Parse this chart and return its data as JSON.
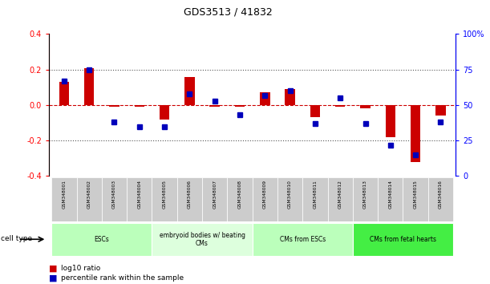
{
  "title": "GDS3513 / 41832",
  "samples": [
    "GSM348001",
    "GSM348002",
    "GSM348003",
    "GSM348004",
    "GSM348005",
    "GSM348006",
    "GSM348007",
    "GSM348008",
    "GSM348009",
    "GSM348010",
    "GSM348011",
    "GSM348012",
    "GSM348013",
    "GSM348014",
    "GSM348015",
    "GSM348016"
  ],
  "log10_ratio": [
    0.13,
    0.21,
    -0.01,
    -0.01,
    -0.08,
    0.16,
    -0.01,
    -0.01,
    0.07,
    0.09,
    -0.07,
    -0.01,
    -0.02,
    -0.18,
    -0.32,
    -0.06
  ],
  "percentile_rank": [
    67,
    75,
    38,
    35,
    35,
    58,
    53,
    43,
    57,
    60,
    37,
    55,
    37,
    22,
    15,
    38
  ],
  "cell_type_groups": [
    {
      "label": "ESCs",
      "start": 0,
      "end": 3,
      "color": "#bbffbb"
    },
    {
      "label": "embryoid bodies w/ beating\nCMs",
      "start": 4,
      "end": 7,
      "color": "#ddffdd"
    },
    {
      "label": "CMs from ESCs",
      "start": 8,
      "end": 11,
      "color": "#bbffbb"
    },
    {
      "label": "CMs from fetal hearts",
      "start": 12,
      "end": 15,
      "color": "#44ee44"
    }
  ],
  "bar_color": "#cc0000",
  "marker_color": "#0000bb",
  "ylim_left": [
    -0.4,
    0.4
  ],
  "ylim_right": [
    0,
    100
  ],
  "yticks_left": [
    -0.4,
    -0.2,
    0.0,
    0.2,
    0.4
  ],
  "yticks_right": [
    0,
    25,
    50,
    75,
    100
  ],
  "hline_color": "#cc0000",
  "dotted_color": "#555555",
  "background_sample": "#cccccc",
  "cell_type_label": "cell type"
}
